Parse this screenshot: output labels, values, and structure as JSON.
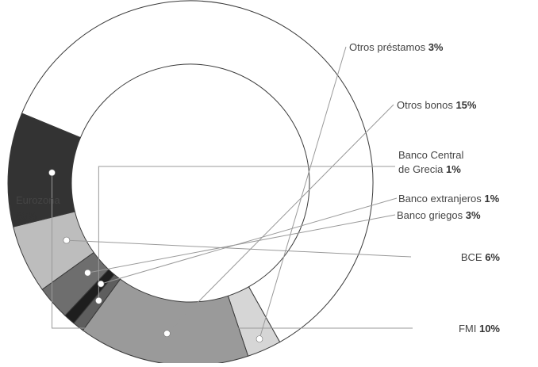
{
  "chart_data": {
    "type": "pie",
    "variant": "donut",
    "title": "",
    "legend": "none",
    "slices": [
      {
        "name": "Eurozona",
        "value": 60,
        "label": "Eurozona",
        "value_label": "60%",
        "color": "#ffffff"
      },
      {
        "name": "Otros préstamos",
        "value": 3,
        "label": "Otros préstamos",
        "value_label": "3%",
        "color": "#d6d6d6"
      },
      {
        "name": "Otros bonos",
        "value": 15,
        "label": "Otros bonos",
        "value_label": "15%",
        "color": "#9a9a9a"
      },
      {
        "name": "Banco Central de Grecia",
        "value": 1,
        "label": "Banco Central de Grecia",
        "label_lines": [
          "Banco Central",
          "de Grecia"
        ],
        "value_label": "1%",
        "color": "#5e5e5e"
      },
      {
        "name": "Banco extranjeros",
        "value": 1,
        "label": "Banco extranjeros",
        "value_label": "1%",
        "color": "#1e1e1e"
      },
      {
        "name": "Banco griegos",
        "value": 3,
        "label": "Banco griegos",
        "value_label": "3%",
        "color": "#6e6e6e"
      },
      {
        "name": "BCE",
        "value": 6,
        "label": "BCE",
        "value_label": "6%",
        "color": "#bdbdbd"
      },
      {
        "name": "FMI",
        "value": 10,
        "label": "FMI",
        "value_label": "10%",
        "color": "#333333"
      }
    ]
  }
}
